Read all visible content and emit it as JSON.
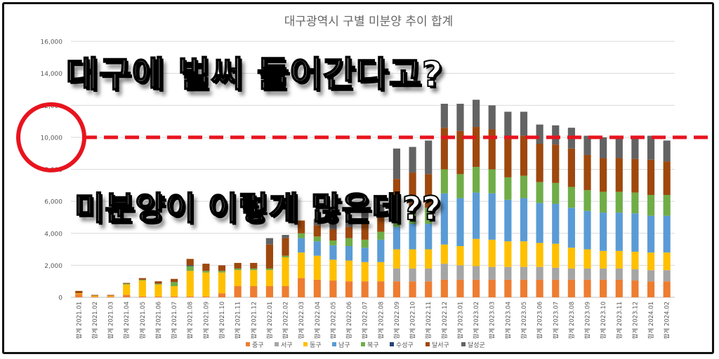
{
  "overlay": {
    "top_text": "대구에 벌써 들어간다고?",
    "bottom_text": "미분양이 이렇게 많은데??",
    "circle_color": "#e8141e",
    "line_color": "#e8141e",
    "line_value": 10000
  },
  "chart_data": {
    "type": "bar",
    "stacked": true,
    "title": "대구광역시 구별 미분양 추이 합계",
    "xlabel": "",
    "ylabel": "",
    "ylim": [
      0,
      16000
    ],
    "yticks": [
      0,
      2000,
      4000,
      6000,
      8000,
      10000,
      12000,
      14000,
      16000
    ],
    "ytick_labels": [
      "0",
      "2,000",
      "4,000",
      "6,000",
      "8,000",
      "10,000",
      "12,000",
      "14,000",
      "16,000"
    ],
    "grid": true,
    "legend": "bottom",
    "category_prefix": "합계",
    "categories": [
      "2021.01",
      "2021.02",
      "2021.03",
      "2021.04",
      "2021.05",
      "2021.06",
      "2021.07",
      "2021.08",
      "2021.09",
      "2021.10",
      "2021.11",
      "2021.12",
      "2022.01",
      "2022.02",
      "2022.03",
      "2022.04",
      "2022.05",
      "2022.06",
      "2022.07",
      "2022.08",
      "2022.09",
      "2022.10",
      "2022.11",
      "2022.12",
      "2023.01",
      "2023.02",
      "2023.03",
      "2023.04",
      "2023.05",
      "2023.06",
      "2023.07",
      "2023.08",
      "2023.09",
      "2023.10",
      "2023.11",
      "2023.12",
      "2024.01",
      "2024.02"
    ],
    "series": [
      {
        "name": "중구",
        "color": "#ed7d31",
        "values": [
          200,
          50,
          50,
          150,
          50,
          50,
          50,
          50,
          50,
          250,
          700,
          700,
          700,
          700,
          1200,
          1100,
          1050,
          1000,
          1000,
          1000,
          1000,
          1000,
          1000,
          1100,
          1100,
          1100,
          1100,
          1100,
          1100,
          1100,
          1100,
          1100,
          1100,
          1100,
          1100,
          1050,
          1000,
          1000
        ]
      },
      {
        "name": "서구",
        "color": "#a5a5a5",
        "values": [
          0,
          0,
          0,
          0,
          0,
          0,
          0,
          0,
          0,
          0,
          0,
          0,
          0,
          0,
          0,
          0,
          0,
          0,
          0,
          0,
          800,
          800,
          800,
          1000,
          900,
          850,
          800,
          800,
          800,
          800,
          750,
          700,
          700,
          700,
          700,
          700,
          700,
          700
        ]
      },
      {
        "name": "동구",
        "color": "#ffc000",
        "values": [
          50,
          50,
          50,
          650,
          1000,
          750,
          650,
          1600,
          1500,
          1300,
          1000,
          1000,
          1000,
          1800,
          1600,
          1500,
          1300,
          1300,
          1200,
          1200,
          1200,
          1200,
          1200,
          1200,
          1200,
          1700,
          1700,
          1600,
          1600,
          1500,
          1500,
          1300,
          1200,
          1100,
          1100,
          1100,
          1100,
          1100
        ]
      },
      {
        "name": "남구",
        "color": "#5b9bd5",
        "values": [
          0,
          0,
          0,
          0,
          0,
          0,
          0,
          0,
          0,
          0,
          0,
          0,
          0,
          0,
          900,
          900,
          900,
          900,
          900,
          1400,
          1400,
          1600,
          1600,
          3200,
          3000,
          2900,
          2900,
          2600,
          2700,
          2500,
          2500,
          2500,
          2400,
          2400,
          2400,
          2400,
          2300,
          2300
        ]
      },
      {
        "name": "북구",
        "color": "#70ad47",
        "values": [
          0,
          0,
          0,
          50,
          50,
          50,
          250,
          300,
          100,
          100,
          100,
          100,
          100,
          100,
          300,
          300,
          300,
          500,
          500,
          500,
          800,
          1000,
          1000,
          1500,
          1500,
          1600,
          1500,
          1400,
          1400,
          1300,
          1300,
          1300,
          1300,
          1300,
          1300,
          1300,
          1300,
          1300
        ]
      },
      {
        "name": "수성구",
        "color": "#264478",
        "values": [
          0,
          0,
          0,
          0,
          0,
          0,
          0,
          50,
          0,
          0,
          0,
          0,
          0,
          0,
          0,
          0,
          0,
          0,
          0,
          0,
          0,
          0,
          0,
          0,
          0,
          0,
          0,
          0,
          0,
          0,
          0,
          0,
          0,
          0,
          0,
          0,
          0,
          0
        ]
      },
      {
        "name": "달서구",
        "color": "#9e480e",
        "values": [
          150,
          50,
          50,
          50,
          100,
          150,
          200,
          400,
          450,
          350,
          350,
          350,
          1500,
          1100,
          800,
          700,
          700,
          700,
          1300,
          1100,
          2200,
          2200,
          2100,
          2600,
          2700,
          2500,
          2500,
          2500,
          2500,
          2400,
          2400,
          2400,
          2200,
          2100,
          2100,
          2100,
          2200,
          2100
        ]
      },
      {
        "name": "달성군",
        "color": "#636363",
        "values": [
          0,
          0,
          0,
          0,
          0,
          0,
          0,
          0,
          0,
          0,
          0,
          0,
          400,
          200,
          0,
          400,
          400,
          500,
          500,
          600,
          1900,
          1600,
          2100,
          1500,
          1700,
          1700,
          1500,
          1600,
          1500,
          1200,
          1200,
          1300,
          1200,
          1300,
          1300,
          1300,
          1500,
          1300
        ]
      }
    ]
  }
}
